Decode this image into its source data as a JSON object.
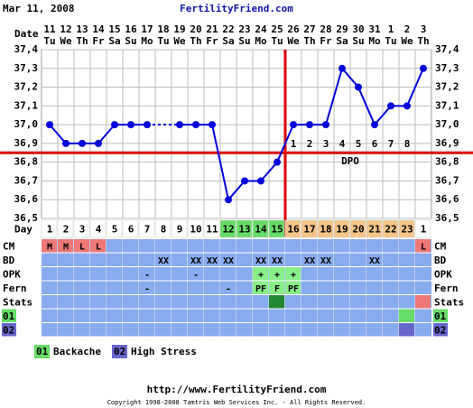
{
  "header": {
    "date": "Mar 11, 2008",
    "site": "FertilityFriend.com"
  },
  "chart_data": {
    "type": "line",
    "categories": [
      "11",
      "12",
      "13",
      "14",
      "15",
      "16",
      "17",
      "18",
      "19",
      "20",
      "21",
      "22",
      "23",
      "24",
      "25",
      "26",
      "27",
      "28",
      "29",
      "30",
      "31",
      "1",
      "2",
      "3"
    ],
    "weekdays": [
      "Tu",
      "We",
      "Th",
      "Fr",
      "Sa",
      "Su",
      "Mo",
      "Tu",
      "We",
      "Th",
      "Fr",
      "Sa",
      "Su",
      "Mo",
      "Tu",
      "We",
      "Th",
      "Fr",
      "Sa",
      "Su",
      "Mo",
      "Tu",
      "We",
      "Th"
    ],
    "values": [
      37.0,
      36.9,
      36.9,
      36.9,
      37.0,
      37.0,
      37.0,
      null,
      37.0,
      37.0,
      37.0,
      36.6,
      36.7,
      36.7,
      36.8,
      37.0,
      37.0,
      37.0,
      37.3,
      37.2,
      37.0,
      37.1,
      37.1,
      37.3
    ],
    "color": "#0000dd",
    "ylim": [
      36.5,
      37.4
    ],
    "yticks": [
      {
        "value": 36.5,
        "label": "36,5"
      },
      {
        "value": 36.6,
        "label": "36,6"
      },
      {
        "value": 36.7,
        "label": "36,7"
      },
      {
        "value": 36.8,
        "label": "36,8"
      },
      {
        "value": 36.9,
        "label": "36,9"
      },
      {
        "value": 37.0,
        "label": "37,0"
      },
      {
        "value": 37.1,
        "label": "37,1"
      },
      {
        "value": 37.2,
        "label": "37,2"
      },
      {
        "value": 37.3,
        "label": "37,3"
      },
      {
        "value": 37.4,
        "label": "37,4"
      }
    ],
    "grid": true,
    "coverline": 36.85,
    "marker_color": "#dd0000",
    "ovulation_index": 14,
    "dpo_label": "DPO",
    "dpo": [
      1,
      2,
      3,
      4,
      5,
      6,
      7,
      8
    ],
    "row_labels": {
      "date": "Date",
      "day": "Day"
    },
    "cycle_days": [
      1,
      2,
      3,
      4,
      5,
      6,
      7,
      8,
      9,
      10,
      11,
      12,
      13,
      14,
      15,
      16,
      17,
      18,
      19,
      20,
      21,
      22,
      23,
      1
    ],
    "day_colors": [
      "#ffffff",
      "#ffffff",
      "#ffffff",
      "#ffffff",
      "#ffffff",
      "#ffffff",
      "#ffffff",
      "#ffffff",
      "#ffffff",
      "#ffffff",
      "#ffffff",
      "#66dd66",
      "#66dd66",
      "#66dd66",
      "#66dd66",
      "#f5c48a",
      "#f5c48a",
      "#f5c48a",
      "#f5c48a",
      "#f5c48a",
      "#f5c48a",
      "#f5c48a",
      "#f5c48a",
      "#ffffff"
    ],
    "row_color": "#88aaee",
    "rows": [
      {
        "label": "CM",
        "cells": [
          "M",
          "M",
          "L",
          "L",
          null,
          null,
          null,
          null,
          null,
          null,
          null,
          null,
          null,
          null,
          null,
          null,
          null,
          null,
          null,
          null,
          null,
          null,
          null,
          "L"
        ],
        "highlight": [
          {
            "i": 0,
            "color": "#ee7777"
          },
          {
            "i": 1,
            "color": "#ee7777"
          },
          {
            "i": 2,
            "color": "#ee7777"
          },
          {
            "i": 3,
            "color": "#ee7777"
          },
          {
            "i": 23,
            "color": "#ee7777"
          }
        ]
      },
      {
        "label": "BD",
        "cells": [
          null,
          null,
          null,
          null,
          null,
          null,
          null,
          "XX",
          null,
          "XX",
          "XX",
          "XX",
          null,
          "XX",
          "XX",
          null,
          "XX",
          "XX",
          null,
          null,
          "XX",
          null,
          null,
          null
        ],
        "highlight": []
      },
      {
        "label": "OPK",
        "cells": [
          null,
          null,
          null,
          null,
          null,
          null,
          "-",
          null,
          null,
          "-",
          null,
          null,
          null,
          "+",
          "+",
          "+",
          null,
          null,
          null,
          null,
          null,
          null,
          null,
          null
        ],
        "highlight": [
          {
            "i": 13,
            "color": "#88ee88"
          },
          {
            "i": 14,
            "color": "#88ee88"
          },
          {
            "i": 15,
            "color": "#88ee88"
          }
        ]
      },
      {
        "label": "Fern",
        "cells": [
          null,
          null,
          null,
          null,
          null,
          null,
          "-",
          null,
          null,
          null,
          null,
          "-",
          null,
          "PF",
          "F",
          "PF",
          null,
          null,
          null,
          null,
          null,
          null,
          null,
          null
        ],
        "highlight": [
          {
            "i": 13,
            "color": "#88ee88"
          },
          {
            "i": 14,
            "color": "#88ee88"
          },
          {
            "i": 15,
            "color": "#88ee88"
          }
        ]
      },
      {
        "label": "Stats",
        "cells": [
          null,
          null,
          null,
          null,
          null,
          null,
          null,
          null,
          null,
          null,
          null,
          null,
          null,
          null,
          null,
          null,
          null,
          null,
          null,
          null,
          null,
          null,
          null,
          null
        ],
        "highlight": [
          {
            "i": 14,
            "color": "#228833"
          },
          {
            "i": 23,
            "color": "#ee7777"
          }
        ]
      },
      {
        "label": "01",
        "label_color": "#66dd66",
        "cells": [
          null,
          null,
          null,
          null,
          null,
          null,
          null,
          null,
          null,
          null,
          null,
          null,
          null,
          null,
          null,
          null,
          null,
          null,
          null,
          null,
          null,
          null,
          null,
          null
        ],
        "highlight": [
          {
            "i": 22,
            "color": "#66dd66"
          }
        ]
      },
      {
        "label": "02",
        "label_color": "#6666cc",
        "cells": [
          null,
          null,
          null,
          null,
          null,
          null,
          null,
          null,
          null,
          null,
          null,
          null,
          null,
          null,
          null,
          null,
          null,
          null,
          null,
          null,
          null,
          null,
          null,
          null
        ],
        "highlight": [
          {
            "i": 22,
            "color": "#6666cc"
          }
        ]
      }
    ],
    "legend": [
      {
        "code": "01",
        "color": "#66dd66",
        "name": "Backache"
      },
      {
        "code": "02",
        "color": "#6666cc",
        "name": "High Stress"
      }
    ]
  },
  "footer": {
    "url": "http://www.FertilityFriend.com",
    "copyright": "Copyright 1998-2008 Tamtris Web Services Inc. - All Rights Reserved."
  }
}
